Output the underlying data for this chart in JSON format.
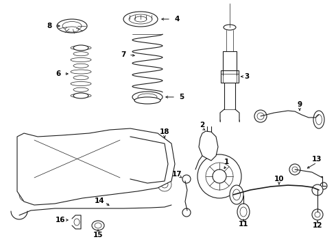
{
  "background_color": "#ffffff",
  "line_color": "#1a1a1a",
  "fig_width": 4.9,
  "fig_height": 3.6,
  "dpi": 100,
  "xlim": [
    0,
    490
  ],
  "ylim": [
    0,
    360
  ]
}
